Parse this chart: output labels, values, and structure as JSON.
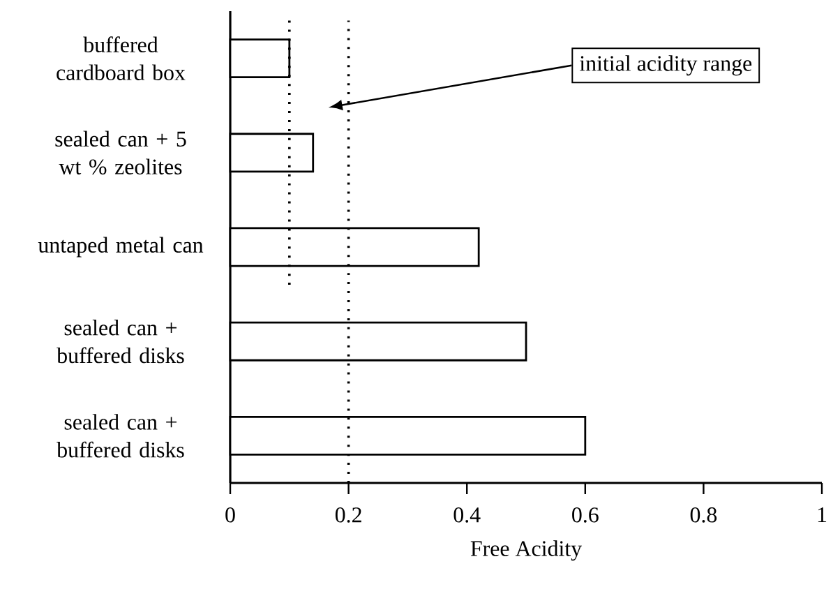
{
  "chart_data": {
    "type": "bar",
    "orientation": "horizontal",
    "xlabel": "Free Acidity",
    "categories": [
      "buffered cardboard box",
      "sealed can + 5 wt % zeolites",
      "untaped metal can",
      "sealed can + buffered disks",
      "sealed can + buffered disks"
    ],
    "values": [
      0.1,
      0.14,
      0.42,
      0.5,
      0.6
    ],
    "color": "#ffffff",
    "xlim": [
      0,
      1
    ],
    "xticks": [
      0,
      0.2,
      0.4,
      0.6,
      0.8,
      1
    ],
    "ref_lines": [
      {
        "axis": "x",
        "value": 0.1,
        "line_style": "dotted"
      },
      {
        "axis": "x",
        "value": 0.2,
        "line_style": "dotted"
      }
    ],
    "annotations": [
      "initial acidity range"
    ],
    "grid": false
  }
}
